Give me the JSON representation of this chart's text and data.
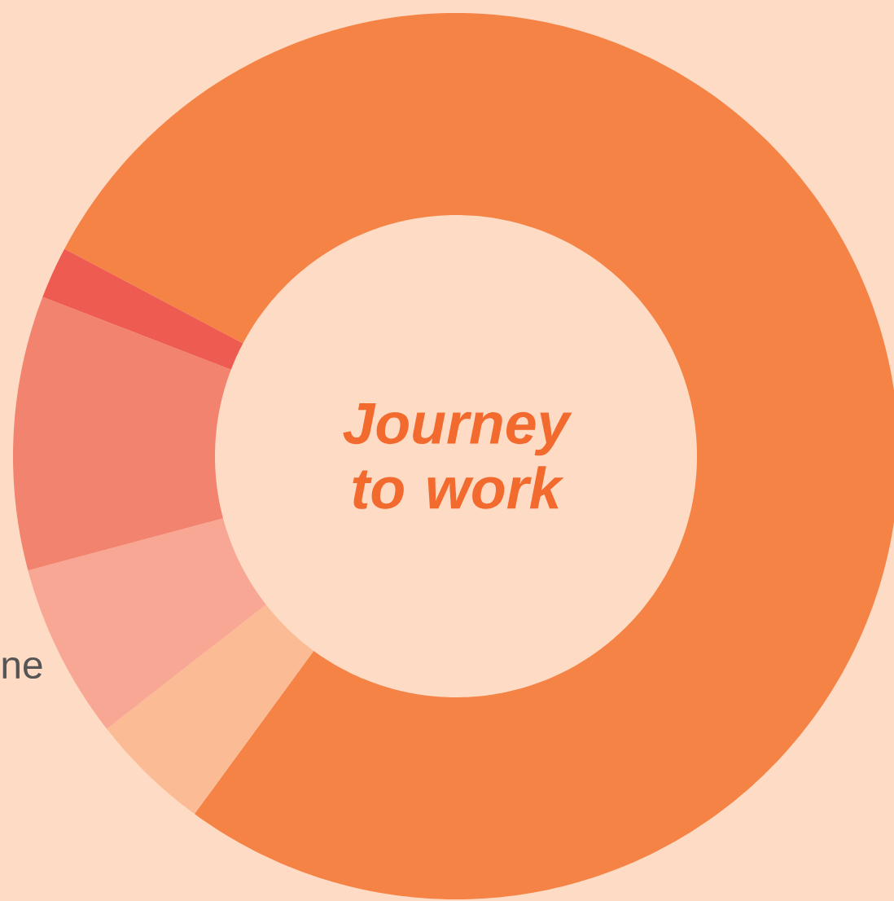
{
  "chart_data": {
    "type": "donut",
    "title": "Journey to work",
    "categories": [
      null,
      null,
      null,
      null,
      null
    ],
    "values": [
      77.3,
      4.4,
      6.4,
      10.0,
      1.9
    ],
    "colors": [
      "#f58345",
      "#fbbb94",
      "#f7a794",
      "#f2836f",
      "#ee5b51"
    ],
    "annotations": [
      "ne"
    ]
  }
}
